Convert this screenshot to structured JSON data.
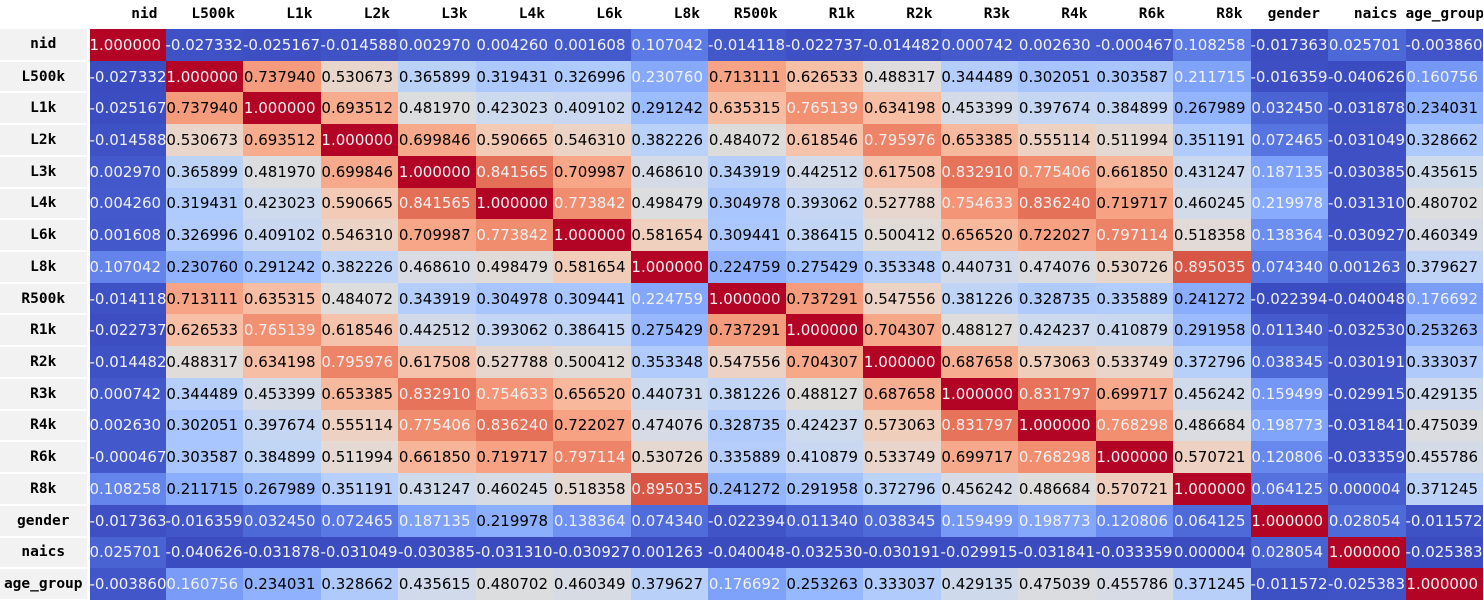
{
  "chart_data": {
    "type": "heatmap",
    "title": "",
    "legend": "none",
    "value_decimals": 6,
    "colormap": "coolwarm",
    "normalization": "per-column min-max",
    "variables": [
      "nid",
      "L500k",
      "L1k",
      "L2k",
      "L3k",
      "L4k",
      "L6k",
      "L8k",
      "R500k",
      "R1k",
      "R2k",
      "R3k",
      "R4k",
      "R6k",
      "R8k",
      "gender",
      "naics",
      "age_group"
    ],
    "matrix": [
      [
        1.0,
        -0.027332,
        -0.025167,
        -0.014588,
        0.00297,
        0.00426,
        0.001608,
        0.107042,
        -0.014118,
        -0.022737,
        -0.014482,
        0.000742,
        0.00263,
        -0.000467,
        0.108258,
        -0.017363,
        0.025701,
        -0.00386
      ],
      [
        -0.027332,
        1.0,
        0.73794,
        0.530673,
        0.365899,
        0.319431,
        0.326996,
        0.23076,
        0.713111,
        0.626533,
        0.488317,
        0.344489,
        0.302051,
        0.303587,
        0.211715,
        -0.016359,
        -0.040626,
        0.160756
      ],
      [
        -0.025167,
        0.73794,
        1.0,
        0.693512,
        0.48197,
        0.423023,
        0.409102,
        0.291242,
        0.635315,
        0.765139,
        0.634198,
        0.453399,
        0.397674,
        0.384899,
        0.267989,
        0.03245,
        -0.031878,
        0.234031
      ],
      [
        -0.014588,
        0.530673,
        0.693512,
        1.0,
        0.699846,
        0.590665,
        0.54631,
        0.382226,
        0.484072,
        0.618546,
        0.795976,
        0.653385,
        0.555114,
        0.511994,
        0.351191,
        0.072465,
        -0.031049,
        0.328662
      ],
      [
        0.00297,
        0.365899,
        0.48197,
        0.699846,
        1.0,
        0.841565,
        0.709987,
        0.46861,
        0.343919,
        0.442512,
        0.617508,
        0.83291,
        0.775406,
        0.66185,
        0.431247,
        0.187135,
        -0.030385,
        0.435615
      ],
      [
        0.00426,
        0.319431,
        0.423023,
        0.590665,
        0.841565,
        1.0,
        0.773842,
        0.498479,
        0.304978,
        0.393062,
        0.527788,
        0.754633,
        0.83624,
        0.719717,
        0.460245,
        0.219978,
        -0.03131,
        0.480702
      ],
      [
        0.001608,
        0.326996,
        0.409102,
        0.54631,
        0.709987,
        0.773842,
        1.0,
        0.581654,
        0.309441,
        0.386415,
        0.500412,
        0.65652,
        0.722027,
        0.797114,
        0.518358,
        0.138364,
        -0.030927,
        0.460349
      ],
      [
        0.107042,
        0.23076,
        0.291242,
        0.382226,
        0.46861,
        0.498479,
        0.581654,
        1.0,
        0.224759,
        0.275429,
        0.353348,
        0.440731,
        0.474076,
        0.530726,
        0.895035,
        0.07434,
        0.001263,
        0.379627
      ],
      [
        -0.014118,
        0.713111,
        0.635315,
        0.484072,
        0.343919,
        0.304978,
        0.309441,
        0.224759,
        1.0,
        0.737291,
        0.547556,
        0.381226,
        0.328735,
        0.335889,
        0.241272,
        -0.022394,
        -0.040048,
        0.176692
      ],
      [
        -0.022737,
        0.626533,
        0.765139,
        0.618546,
        0.442512,
        0.393062,
        0.386415,
        0.275429,
        0.737291,
        1.0,
        0.704307,
        0.488127,
        0.424237,
        0.410879,
        0.291958,
        0.01134,
        -0.03253,
        0.253263
      ],
      [
        -0.014482,
        0.488317,
        0.634198,
        0.795976,
        0.617508,
        0.527788,
        0.500412,
        0.353348,
        0.547556,
        0.704307,
        1.0,
        0.687658,
        0.573063,
        0.533749,
        0.372796,
        0.038345,
        -0.030191,
        0.333037
      ],
      [
        0.000742,
        0.344489,
        0.453399,
        0.653385,
        0.83291,
        0.754633,
        0.65652,
        0.440731,
        0.381226,
        0.488127,
        0.687658,
        1.0,
        0.831797,
        0.699717,
        0.456242,
        0.159499,
        -0.029915,
        0.429135
      ],
      [
        0.00263,
        0.302051,
        0.397674,
        0.555114,
        0.775406,
        0.83624,
        0.722027,
        0.474076,
        0.328735,
        0.424237,
        0.573063,
        0.831797,
        1.0,
        0.768298,
        0.486684,
        0.198773,
        -0.031841,
        0.475039
      ],
      [
        -0.000467,
        0.303587,
        0.384899,
        0.511994,
        0.66185,
        0.719717,
        0.797114,
        0.530726,
        0.335889,
        0.410879,
        0.533749,
        0.699717,
        0.768298,
        1.0,
        0.570721,
        0.120806,
        -0.033359,
        0.455786
      ],
      [
        0.108258,
        0.211715,
        0.267989,
        0.351191,
        0.431247,
        0.460245,
        0.518358,
        0.895035,
        0.241272,
        0.291958,
        0.372796,
        0.456242,
        0.486684,
        0.570721,
        1.0,
        0.064125,
        4e-06,
        0.371245
      ],
      [
        -0.017363,
        -0.016359,
        0.03245,
        0.072465,
        0.187135,
        0.219978,
        0.138364,
        0.07434,
        -0.022394,
        0.01134,
        0.038345,
        0.159499,
        0.198773,
        0.120806,
        0.064125,
        1.0,
        0.028054,
        -0.011572
      ],
      [
        0.025701,
        -0.040626,
        -0.031878,
        -0.031049,
        -0.030385,
        -0.03131,
        -0.030927,
        0.001263,
        -0.040048,
        -0.03253,
        -0.030191,
        -0.029915,
        -0.031841,
        -0.033359,
        4e-06,
        0.028054,
        1.0,
        -0.025383
      ],
      [
        -0.00386,
        0.160756,
        0.234031,
        0.328662,
        0.435615,
        0.480702,
        0.460349,
        0.379627,
        0.176692,
        0.253263,
        0.333037,
        0.429135,
        0.475039,
        0.455786,
        0.371245,
        -0.011572,
        -0.025383,
        1.0
      ]
    ],
    "colors": {
      "blue_min": "#3b4cc0",
      "mid": "#dddddd",
      "red_max": "#b40426",
      "text_on_dark": "#f1f1f1",
      "text_on_light": "#000000",
      "row_label_bg": "#f2f2f2",
      "header_bg": "#ffffff"
    },
    "coolwarm_lut": [
      [
        59,
        76,
        192
      ],
      [
        68,
        90,
        204
      ],
      [
        77,
        104,
        215
      ],
      [
        87,
        117,
        225
      ],
      [
        98,
        130,
        234
      ],
      [
        108,
        142,
        241
      ],
      [
        119,
        154,
        247
      ],
      [
        130,
        165,
        251
      ],
      [
        141,
        176,
        254
      ],
      [
        152,
        185,
        255
      ],
      [
        163,
        194,
        255
      ],
      [
        174,
        201,
        253
      ],
      [
        184,
        208,
        249
      ],
      [
        194,
        213,
        244
      ],
      [
        204,
        217,
        238
      ],
      [
        213,
        219,
        230
      ],
      [
        221,
        221,
        221
      ],
      [
        229,
        216,
        209
      ],
      [
        236,
        211,
        197
      ],
      [
        241,
        204,
        185
      ],
      [
        245,
        196,
        173
      ],
      [
        247,
        187,
        160
      ],
      [
        247,
        177,
        148
      ],
      [
        247,
        166,
        135
      ],
      [
        244,
        154,
        123
      ],
      [
        241,
        141,
        111
      ],
      [
        236,
        127,
        99
      ],
      [
        229,
        112,
        88
      ],
      [
        222,
        96,
        77
      ],
      [
        213,
        80,
        66
      ],
      [
        203,
        62,
        56
      ],
      [
        192,
        40,
        47
      ],
      [
        180,
        4,
        38
      ]
    ],
    "text_color_rule": {
      "white_below_t": 0.2392,
      "white_above_t": 0.755
    }
  }
}
